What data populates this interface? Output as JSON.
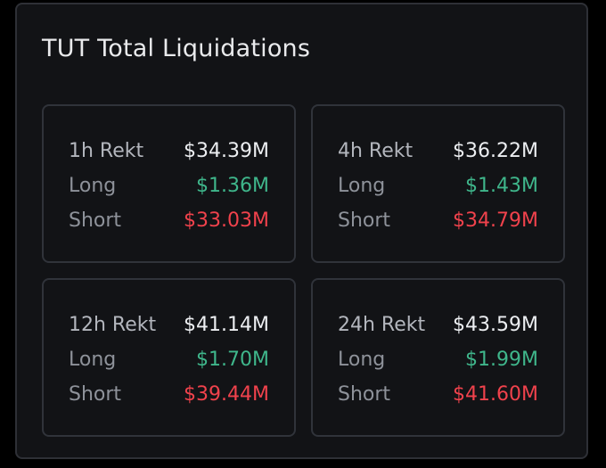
{
  "title": "TUT Total Liquidations",
  "cards": [
    {
      "period": "1h Rekt",
      "total": "$34.39M",
      "long_label": "Long",
      "long": "$1.36M",
      "short_label": "Short",
      "short": "$33.03M"
    },
    {
      "period": "4h Rekt",
      "total": "$36.22M",
      "long_label": "Long",
      "long": "$1.43M",
      "short_label": "Short",
      "short": "$34.79M"
    },
    {
      "period": "12h Rekt",
      "total": "$41.14M",
      "long_label": "Long",
      "long": "$1.70M",
      "short_label": "Short",
      "short": "$39.44M"
    },
    {
      "period": "24h Rekt",
      "total": "$43.59M",
      "long_label": "Long",
      "long": "$1.99M",
      "short_label": "Short",
      "short": "$41.60M"
    }
  ],
  "colors": {
    "long": "#3fb68b",
    "short": "#f0424c"
  }
}
